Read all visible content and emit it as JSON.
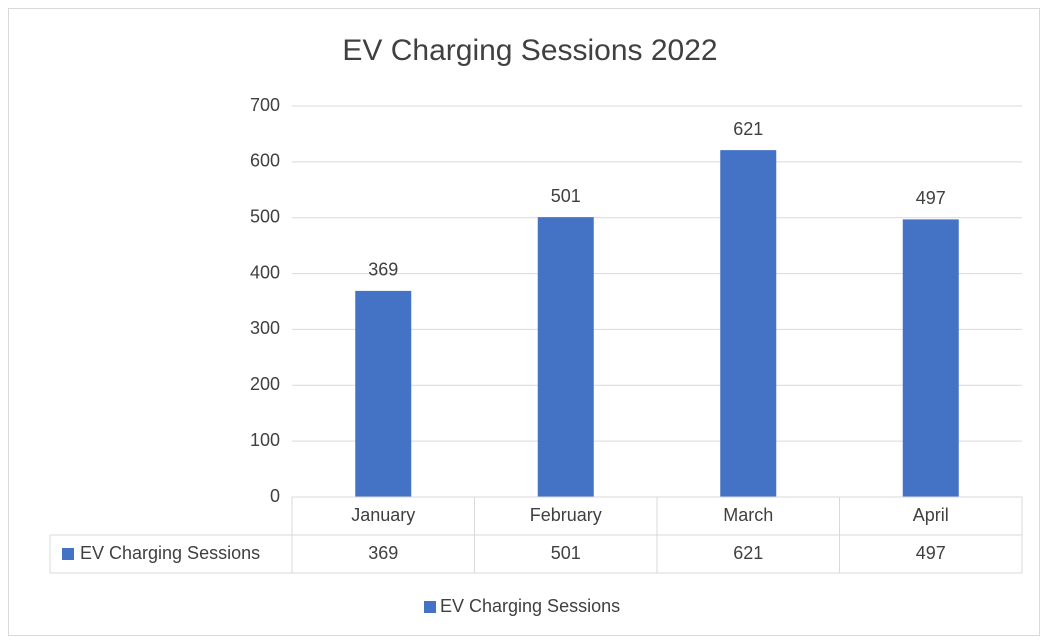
{
  "chart_data": {
    "type": "bar",
    "title": "EV Charging Sessions 2022",
    "categories": [
      "January",
      "February",
      "March",
      "April"
    ],
    "series": [
      {
        "name": "EV Charging Sessions",
        "color": "#4472c4",
        "values": [
          369,
          501,
          621,
          497
        ]
      }
    ],
    "ylim": [
      0,
      700
    ],
    "yticks": [
      0,
      100,
      200,
      300,
      400,
      500,
      600,
      700
    ],
    "grid": true,
    "legend": "bottom",
    "data_table": true
  }
}
